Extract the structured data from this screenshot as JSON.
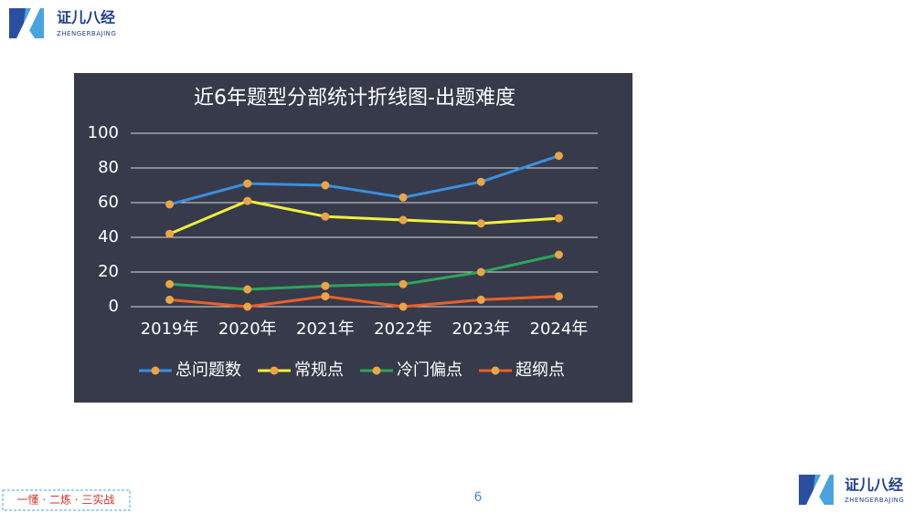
{
  "header": {
    "logo_text": "证儿八经",
    "logo_subtext": "ZHENGERBAJING"
  },
  "chart_data": {
    "type": "line",
    "title": "近6年题型分部统计折线图-出题难度",
    "categories": [
      "2019年",
      "2020年",
      "2021年",
      "2022年",
      "2023年",
      "2024年"
    ],
    "series": [
      {
        "name": "总问题数",
        "color": "#3b8fdc",
        "values": [
          59,
          71,
          70,
          63,
          72,
          87
        ]
      },
      {
        "name": "常规点",
        "color": "#f4f03a",
        "values": [
          42,
          61,
          52,
          50,
          48,
          51
        ]
      },
      {
        "name": "冷门偏点",
        "color": "#2fa35c",
        "values": [
          13,
          10,
          12,
          13,
          20,
          30
        ]
      },
      {
        "name": "超纲点",
        "color": "#e8602a",
        "values": [
          4,
          0,
          6,
          0,
          4,
          6
        ]
      }
    ],
    "marker_color": "#e9a548",
    "ylim": [
      0,
      100
    ],
    "yticks": [
      0,
      20,
      40,
      60,
      80,
      100
    ],
    "grid": true,
    "legend": "bottom"
  },
  "footer": {
    "slogan": "一懂 · 二炼 · 三实战",
    "page_number": "6",
    "logo_text": "证儿八经",
    "logo_subtext": "ZHENGERBAJING"
  }
}
